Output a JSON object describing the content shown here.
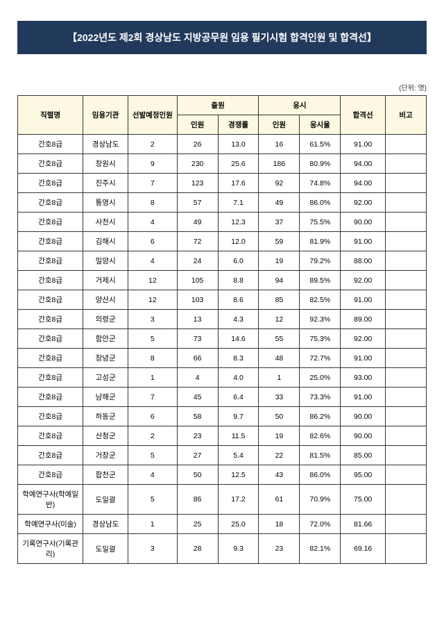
{
  "title": "【2022년도 제2회 경상남도 지방공무원 임용 필기시험 합격인원 및 합격선】",
  "unitLabel": "(단위: 명)",
  "headers": {
    "jobName": "직렬명",
    "agency": "임용기관",
    "planCount": "선발예정인원",
    "applyGroup": "출원",
    "applyCount": "인원",
    "applyRatio": "경쟁률",
    "takeGroup": "응시",
    "takeCount": "인원",
    "takeRate": "응시율",
    "passLine": "합격선",
    "note": "비고"
  },
  "rows": [
    {
      "jobName": "간호8급",
      "agency": "경상남도",
      "plan": "2",
      "appCount": "26",
      "appRatio": "13.0",
      "takeCount": "16",
      "takeRate": "61.5%",
      "pass": "91.00",
      "note": ""
    },
    {
      "jobName": "간호8급",
      "agency": "창원시",
      "plan": "9",
      "appCount": "230",
      "appRatio": "25.6",
      "takeCount": "186",
      "takeRate": "80.9%",
      "pass": "94.00",
      "note": ""
    },
    {
      "jobName": "간호8급",
      "agency": "진주시",
      "plan": "7",
      "appCount": "123",
      "appRatio": "17.6",
      "takeCount": "92",
      "takeRate": "74.8%",
      "pass": "94.00",
      "note": ""
    },
    {
      "jobName": "간호8급",
      "agency": "통영시",
      "plan": "8",
      "appCount": "57",
      "appRatio": "7.1",
      "takeCount": "49",
      "takeRate": "86.0%",
      "pass": "92.00",
      "note": ""
    },
    {
      "jobName": "간호8급",
      "agency": "사천시",
      "plan": "4",
      "appCount": "49",
      "appRatio": "12.3",
      "takeCount": "37",
      "takeRate": "75.5%",
      "pass": "90.00",
      "note": ""
    },
    {
      "jobName": "간호8급",
      "agency": "김해시",
      "plan": "6",
      "appCount": "72",
      "appRatio": "12.0",
      "takeCount": "59",
      "takeRate": "81.9%",
      "pass": "91.00",
      "note": ""
    },
    {
      "jobName": "간호8급",
      "agency": "밀양시",
      "plan": "4",
      "appCount": "24",
      "appRatio": "6.0",
      "takeCount": "19",
      "takeRate": "79.2%",
      "pass": "88.00",
      "note": ""
    },
    {
      "jobName": "간호8급",
      "agency": "거제시",
      "plan": "12",
      "appCount": "105",
      "appRatio": "8.8",
      "takeCount": "94",
      "takeRate": "89.5%",
      "pass": "92.00",
      "note": ""
    },
    {
      "jobName": "간호8급",
      "agency": "양산시",
      "plan": "12",
      "appCount": "103",
      "appRatio": "8.6",
      "takeCount": "85",
      "takeRate": "82.5%",
      "pass": "91.00",
      "note": ""
    },
    {
      "jobName": "간호8급",
      "agency": "의령군",
      "plan": "3",
      "appCount": "13",
      "appRatio": "4.3",
      "takeCount": "12",
      "takeRate": "92.3%",
      "pass": "89.00",
      "note": ""
    },
    {
      "jobName": "간호8급",
      "agency": "함안군",
      "plan": "5",
      "appCount": "73",
      "appRatio": "14.6",
      "takeCount": "55",
      "takeRate": "75.3%",
      "pass": "92.00",
      "note": ""
    },
    {
      "jobName": "간호8급",
      "agency": "창녕군",
      "plan": "8",
      "appCount": "66",
      "appRatio": "8.3",
      "takeCount": "48",
      "takeRate": "72.7%",
      "pass": "91.00",
      "note": ""
    },
    {
      "jobName": "간호8급",
      "agency": "고성군",
      "plan": "1",
      "appCount": "4",
      "appRatio": "4.0",
      "takeCount": "1",
      "takeRate": "25.0%",
      "pass": "93.00",
      "note": ""
    },
    {
      "jobName": "간호8급",
      "agency": "남해군",
      "plan": "7",
      "appCount": "45",
      "appRatio": "6.4",
      "takeCount": "33",
      "takeRate": "73.3%",
      "pass": "91.00",
      "note": ""
    },
    {
      "jobName": "간호8급",
      "agency": "하동군",
      "plan": "6",
      "appCount": "58",
      "appRatio": "9.7",
      "takeCount": "50",
      "takeRate": "86.2%",
      "pass": "90.00",
      "note": ""
    },
    {
      "jobName": "간호8급",
      "agency": "산청군",
      "plan": "2",
      "appCount": "23",
      "appRatio": "11.5",
      "takeCount": "19",
      "takeRate": "82.6%",
      "pass": "90.00",
      "note": ""
    },
    {
      "jobName": "간호8급",
      "agency": "거창군",
      "plan": "5",
      "appCount": "27",
      "appRatio": "5.4",
      "takeCount": "22",
      "takeRate": "81.5%",
      "pass": "85.00",
      "note": ""
    },
    {
      "jobName": "간호8급",
      "agency": "합천군",
      "plan": "4",
      "appCount": "50",
      "appRatio": "12.5",
      "takeCount": "43",
      "takeRate": "86.0%",
      "pass": "95.00",
      "note": ""
    },
    {
      "jobName": "학예연구사(학예일반)",
      "agency": "도일괄",
      "plan": "5",
      "appCount": "86",
      "appRatio": "17.2",
      "takeCount": "61",
      "takeRate": "70.9%",
      "pass": "75.00",
      "note": ""
    },
    {
      "jobName": "학예연구사(미술)",
      "agency": "경상남도",
      "plan": "1",
      "appCount": "25",
      "appRatio": "25.0",
      "takeCount": "18",
      "takeRate": "72.0%",
      "pass": "81.66",
      "note": ""
    },
    {
      "jobName": "기록연구사(기록관리)",
      "agency": "도일괄",
      "plan": "3",
      "appCount": "28",
      "appRatio": "9.3",
      "takeCount": "23",
      "takeRate": "82.1%",
      "pass": "69.16",
      "note": ""
    }
  ]
}
